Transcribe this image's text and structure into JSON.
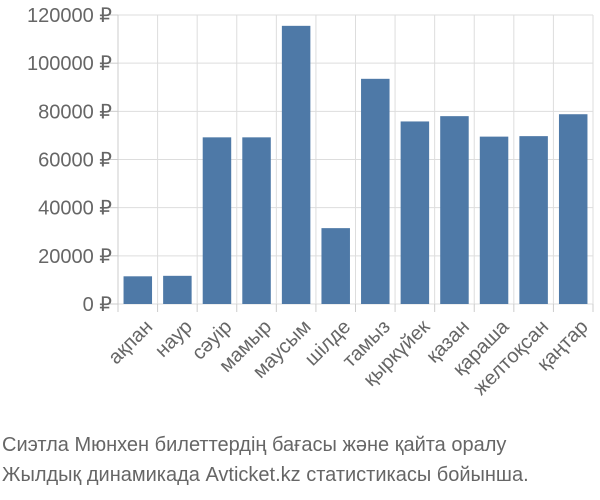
{
  "chart_data": {
    "type": "bar",
    "categories": [
      "ақпан",
      "наур",
      "сәуір",
      "мамыр",
      "маусым",
      "шілде",
      "тамыз",
      "қыркүйек",
      "қазан",
      "қараша",
      "желтоқсан",
      "қаңтар"
    ],
    "values": [
      11500,
      11700,
      69200,
      69200,
      115500,
      31500,
      93500,
      75800,
      78000,
      69500,
      69700,
      78800
    ],
    "ylim": [
      0,
      120000
    ],
    "yticks": [
      0,
      20000,
      40000,
      60000,
      80000,
      100000,
      120000
    ],
    "ytick_labels": [
      "0 ₽",
      "20000 ₽",
      "40000 ₽",
      "60000 ₽",
      "80000 ₽",
      "100000 ₽",
      "120000 ₽"
    ],
    "bar_color": "#4e79a7",
    "grid": true,
    "legend": "none"
  },
  "caption": {
    "line1": "Сиэтла Мюнхен билеттердің бағасы және қайта оралу",
    "line2": "Жылдық динамикада Avticket.kz статистикасы бойынша."
  }
}
